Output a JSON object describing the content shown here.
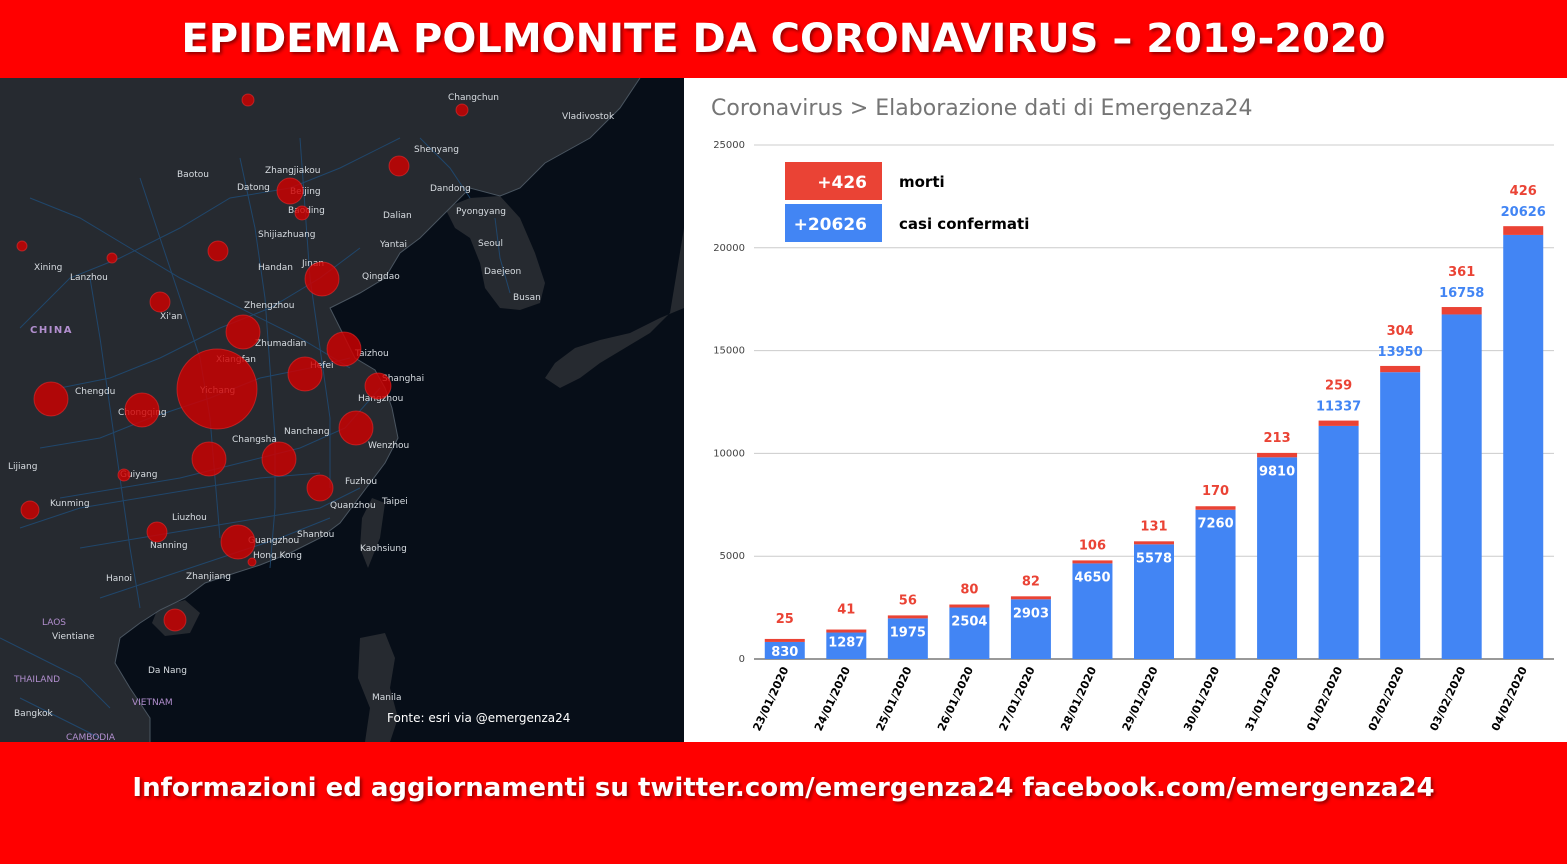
{
  "header": {
    "title": "EPIDEMIA POLMONITE DA CORONAVIRUS – 2019-2020"
  },
  "footer": {
    "text": "Informazioni ed aggiornamenti su twitter.com/emergenza24  facebook.com/emergenza24"
  },
  "map": {
    "source_label": "Fonte: esri via @emergenza24",
    "country_labels": [
      "CHINA",
      "LAOS",
      "THAILAND",
      "VIETNAM",
      "CAMBODIA"
    ],
    "city_labels": [
      "Changchun",
      "Vladivostok",
      "Shenyang",
      "Baotou",
      "Zhangjiakou",
      "Datong",
      "Beijing",
      "Baoding",
      "Dandong",
      "Dalian",
      "Pyongyang",
      "Shijiazhuang",
      "Yantai",
      "Seoul",
      "Handan",
      "Jinan",
      "Qingdao",
      "Daejeon",
      "Xining",
      "Lanzhou",
      "Busan",
      "Zhengzhou",
      "Xi'an",
      "Zhumadian",
      "Taizhou",
      "Xiangfan",
      "Hefei",
      "Shanghai",
      "Chengdu",
      "Yichang",
      "Chongqing",
      "Hangzhou",
      "Nanchang",
      "Changsha",
      "Wenzhou",
      "Lijiang",
      "Guiyang",
      "Fuzhou",
      "Taipei",
      "Kunming",
      "Quanzhou",
      "Liuzhou",
      "Nanning",
      "Shantou",
      "Kaohsiung",
      "Guangzhou",
      "Hong Kong",
      "Hanoi",
      "Zhanjiang",
      "Vientiane",
      "Da Nang",
      "Manila",
      "Bangkok"
    ],
    "colors": {
      "background": "#070e18",
      "land": "#262a30",
      "roads": "#1f4e7a",
      "marker": "#cc0000"
    }
  },
  "chart": {
    "title": "Coronavirus > Elaborazione dati di Emergenza24",
    "legend": {
      "deaths_value": "+426",
      "deaths_label": "morti",
      "cases_value": "+20626",
      "cases_label": "casi confermati"
    }
  },
  "chart_data": {
    "type": "bar",
    "stacked": true,
    "categories": [
      "23/01/2020",
      "24/01/2020",
      "25/01/2020",
      "26/01/2020",
      "27/01/2020",
      "28/01/2020",
      "29/01/2020",
      "30/01/2020",
      "31/01/2020",
      "01/02/2020",
      "02/02/2020",
      "03/02/2020",
      "04/02/2020"
    ],
    "series": [
      {
        "name": "casi confermati",
        "color": "#4285f4",
        "values": [
          830,
          1287,
          1975,
          2504,
          2903,
          4650,
          5578,
          7260,
          9810,
          11337,
          13950,
          16758,
          20626
        ]
      },
      {
        "name": "morti",
        "color": "#ea4335",
        "values": [
          25,
          41,
          56,
          80,
          82,
          106,
          131,
          170,
          213,
          259,
          304,
          361,
          426
        ]
      }
    ],
    "ylim": [
      0,
      25000
    ],
    "yticks": [
      0,
      5000,
      10000,
      15000,
      20000,
      25000
    ],
    "grid": true,
    "legend_position": "top-left"
  }
}
